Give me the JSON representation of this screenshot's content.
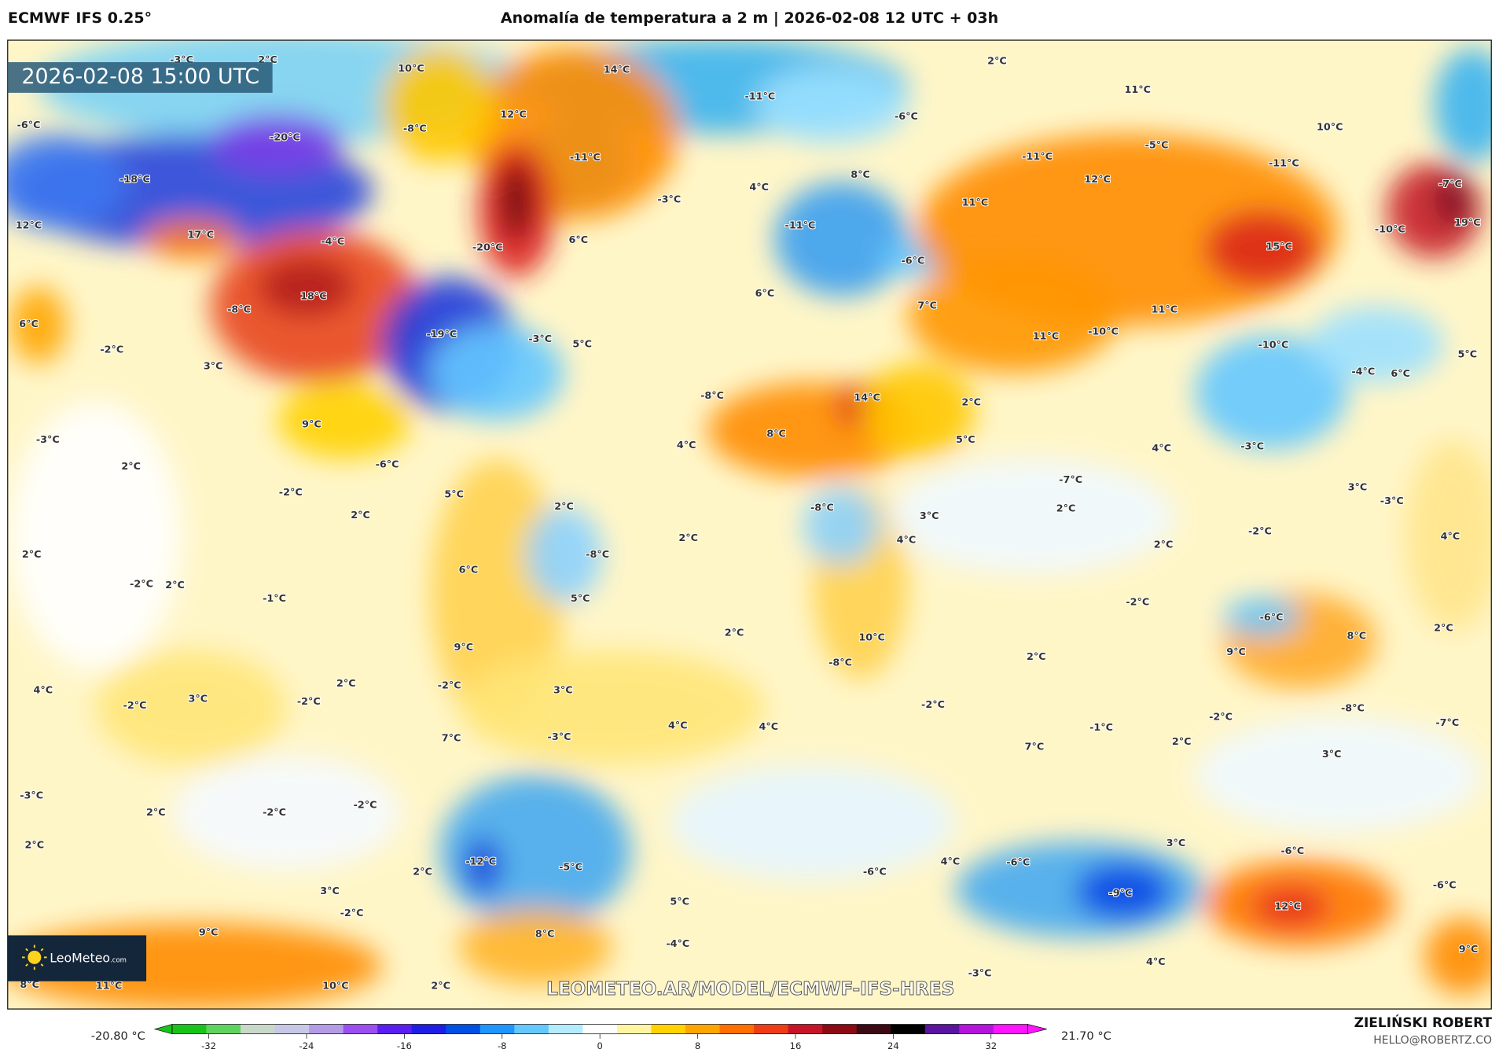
{
  "header": {
    "model": "ECMWF IFS 0.25°",
    "title": "Anomalía de temperatura a 2 m | 2026-02-08 12 UTC + 03h"
  },
  "map": {
    "valid_time": "2026-02-08 15:00 UTC",
    "watermark": "LEOMETEO.AR/MODEL/ECMWF-IFS-HRES",
    "logo": {
      "name": "LeoMeteo",
      "suffix": ".com",
      "icon": "sun-icon"
    },
    "labels": [
      "-3°C",
      "2°C",
      "10°C",
      "14°C",
      "2°C",
      "11°C",
      "-11°C",
      "-6°C",
      "10°C",
      "-6°C",
      "-20°C",
      "12°C",
      "-8°C",
      "-11°C",
      "-5°C",
      "-11°C",
      "-11°C",
      "-18°C",
      "8°C",
      "4°C",
      "12°C",
      "-7°C",
      "-3°C",
      "11°C",
      "-11°C",
      "12°C",
      "17°C",
      "-4°C",
      "-20°C",
      "6°C",
      "-10°C",
      "19°C",
      "-6°C",
      "15°C",
      "18°C",
      "-8°C",
      "6°C",
      "7°C",
      "11°C",
      "6°C",
      "-19°C",
      "-3°C",
      "5°C",
      "11°C",
      "-10°C",
      "-2°C",
      "3°C",
      "-10°C",
      "5°C",
      "-4°C",
      "6°C",
      "14°C",
      "2°C",
      "-8°C",
      "9°C",
      "-3°C",
      "8°C",
      "4°C",
      "5°C",
      "4°C",
      "-3°C",
      "-6°C",
      "2°C",
      "-7°C",
      "3°C",
      "-3°C",
      "-2°C",
      "5°C",
      "2°C",
      "2°C",
      "-8°C",
      "2°C",
      "3°C",
      "-2°C",
      "4°C",
      "2°C",
      "4°C",
      "2°C",
      "2°C",
      "-8°C",
      "-2°C",
      "2°C",
      "6°C",
      "-1°C",
      "5°C",
      "-2°C",
      "-6°C",
      "2°C",
      "8°C",
      "2°C",
      "9°C",
      "10°C",
      "9°C",
      "-8°C",
      "2°C",
      "2°C",
      "4°C",
      "3°C",
      "-2°C",
      "-2°C",
      "3°C",
      "-2°C",
      "-2°C",
      "-2°C",
      "-8°C",
      "-7°C",
      "4°C",
      "4°C",
      "-1°C",
      "7°C",
      "2°C",
      "-3°C",
      "7°C",
      "3°C",
      "-3°C",
      "-2°C",
      "2°C",
      "-2°C",
      "2°C",
      "3°C",
      "-6°C",
      "-6°C",
      "4°C",
      "-12°C",
      "-5°C",
      "2°C",
      "-6°C",
      "-6°C",
      "-9°C",
      "3°C",
      "-2°C",
      "5°C",
      "12°C",
      "9°C",
      "8°C",
      "-4°C",
      "9°C",
      "4°C",
      "-3°C",
      "8°C",
      "11°C",
      "10°C",
      "2°C"
    ]
  },
  "colorbar": {
    "min_label": "-20.80 °C",
    "max_label": "21.70 °C",
    "ticks": [
      "-32",
      "-24",
      "-16",
      "-8",
      "0",
      "8",
      "16",
      "24",
      "32"
    ],
    "range": [
      -35,
      35
    ],
    "colors": [
      "#19c419",
      "#5fd35f",
      "#c9d9c9",
      "#c8c8e6",
      "#b49be6",
      "#9b4ff0",
      "#5a1ef0",
      "#1e1ee6",
      "#0050e6",
      "#1e96ff",
      "#64c8ff",
      "#b4ebff",
      "#ffffff",
      "#fff5a0",
      "#ffd200",
      "#ffa500",
      "#ff6e00",
      "#f03c14",
      "#c81428",
      "#8c0a14",
      "#3c0a14",
      "#000000",
      "#5a14a0",
      "#b414dc",
      "#ff14ff"
    ]
  },
  "credits": {
    "author": "ZIELIŃSKI ROBERT",
    "email": "HELLO@ROBERTZ.CO"
  }
}
